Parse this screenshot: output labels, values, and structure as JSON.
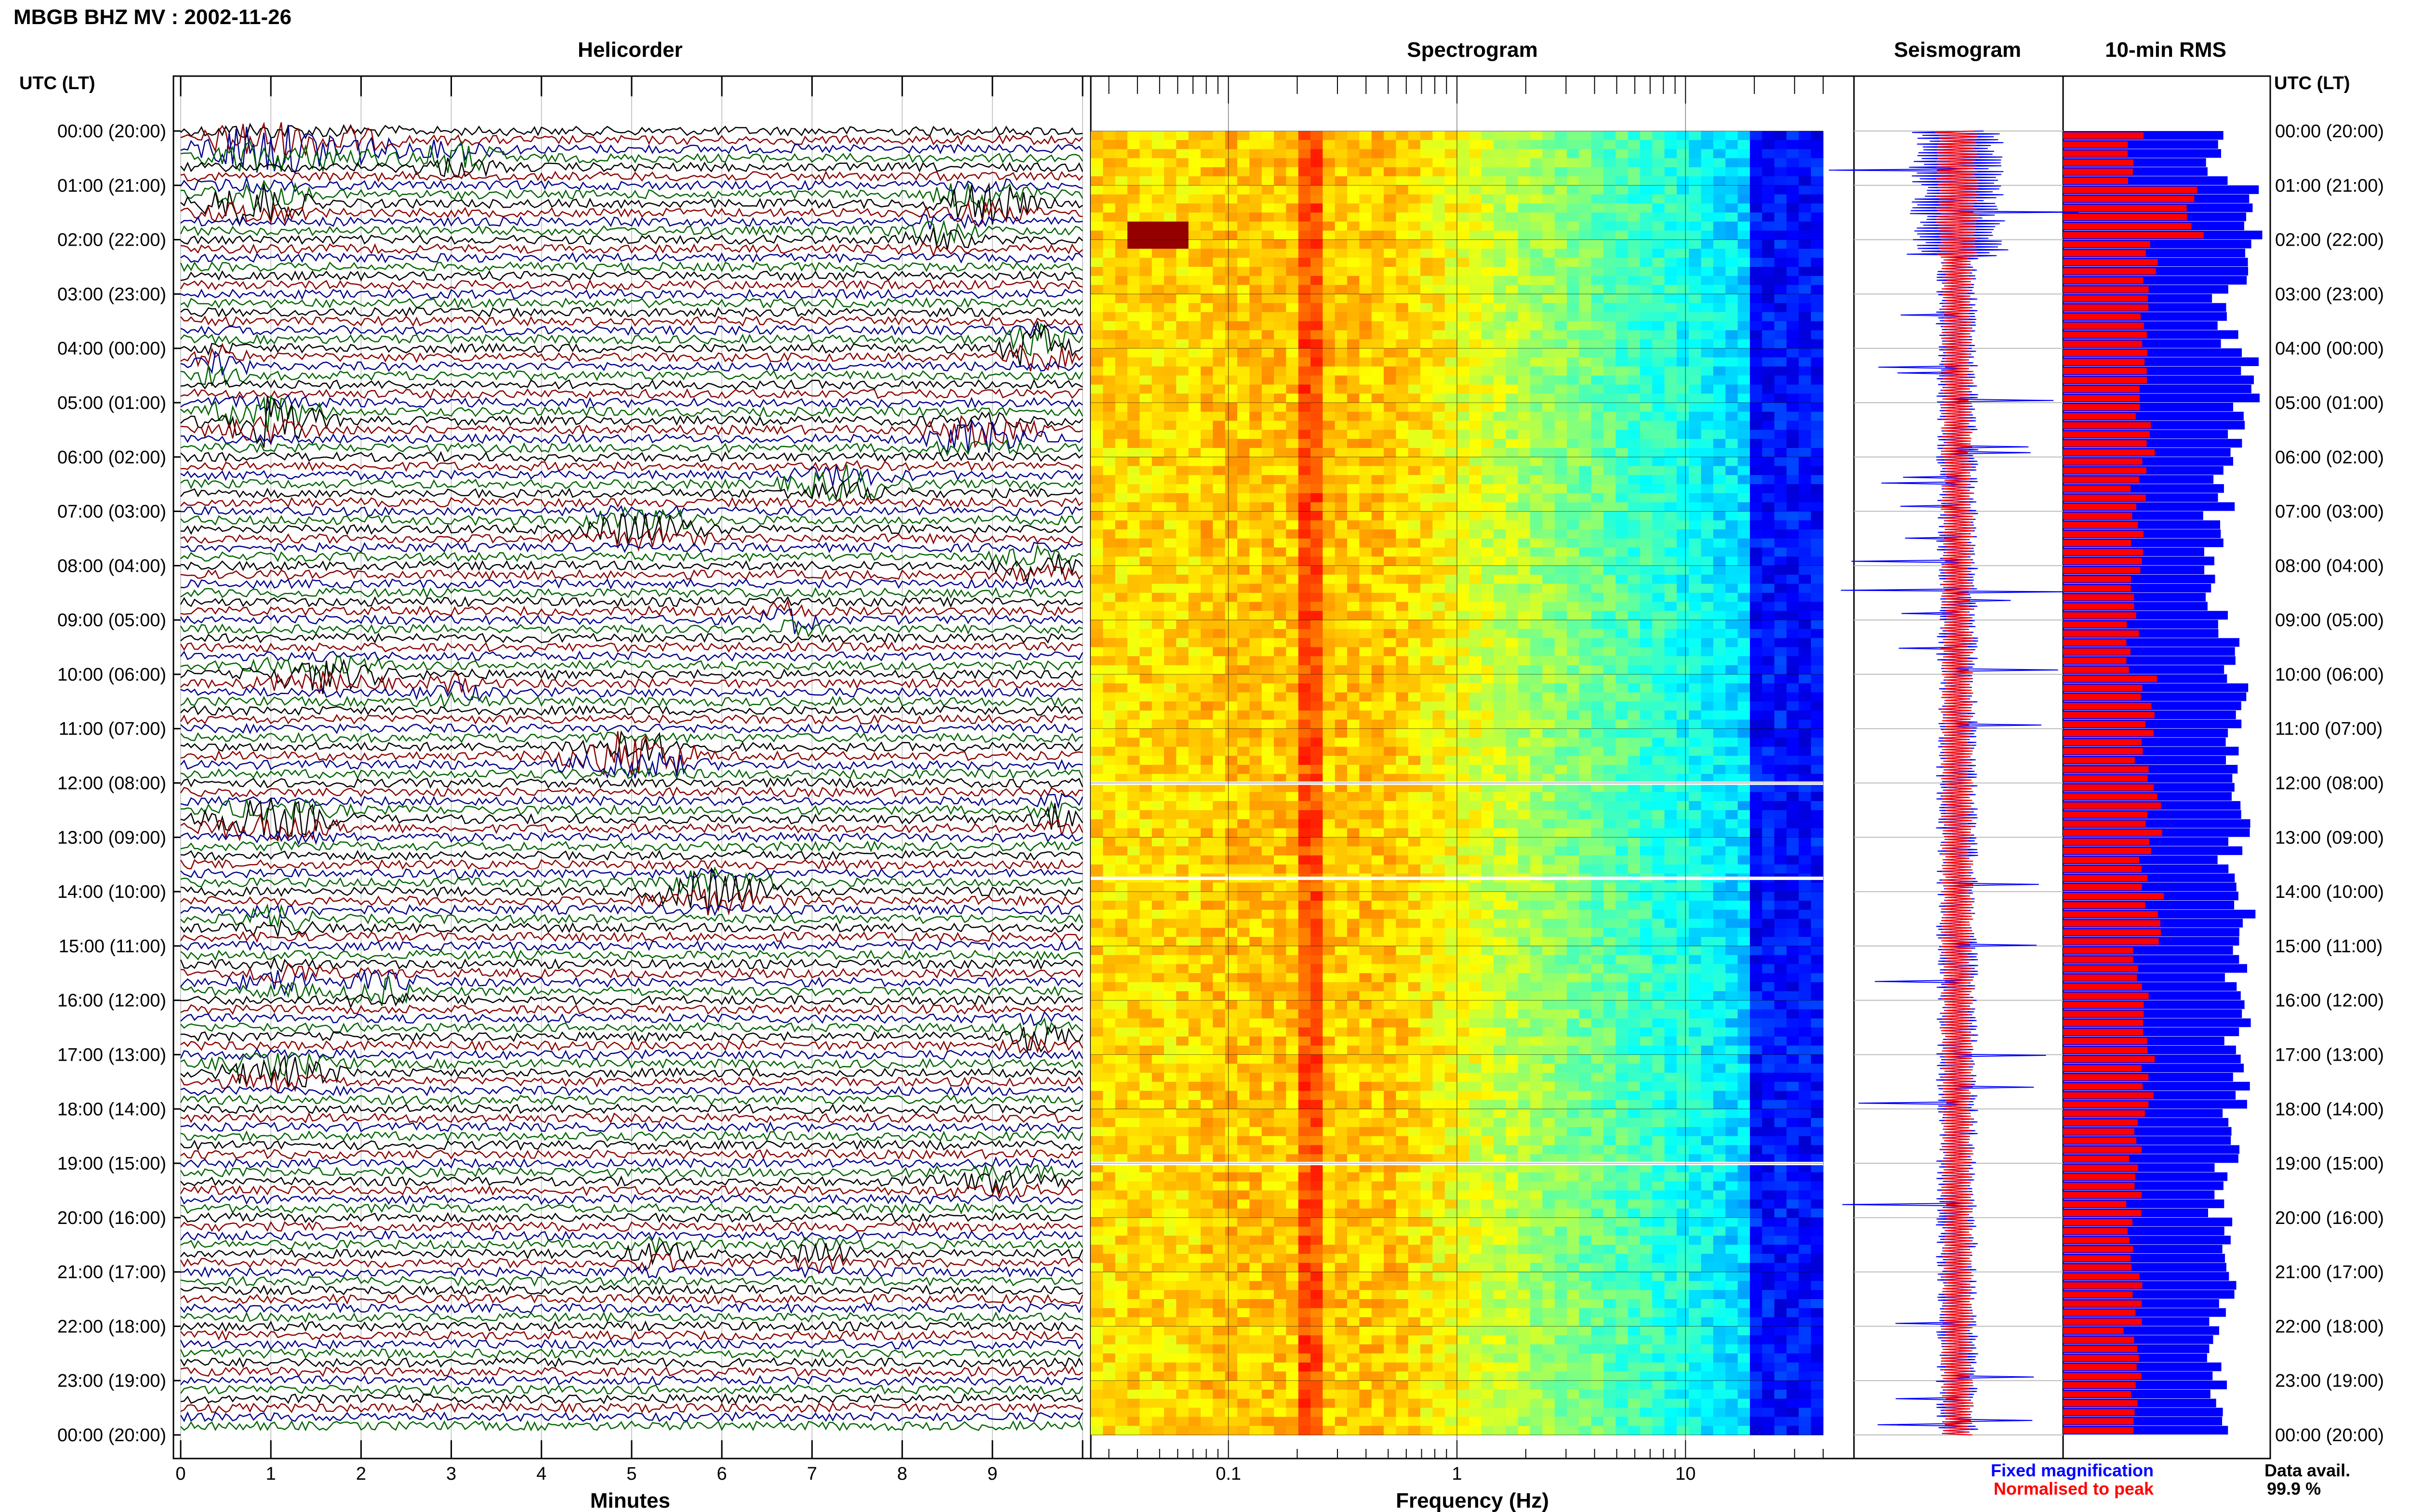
{
  "header": {
    "title": "MBGB BHZ MV : 2002-11-26",
    "helicorder_title": "Helicorder",
    "spectrogram_title": "Spectrogram",
    "seismogram_title": "Seismogram",
    "rms_title": "10-min RMS",
    "utc_lt_left": "UTC (LT)",
    "utc_lt_right": "UTC (LT)"
  },
  "footer": {
    "minutes_label": "Minutes",
    "frequency_label": "Frequency (Hz)",
    "fixed_magnification": "Fixed magnification",
    "normalised_to_peak": "Normalised to peak",
    "data_avail_label": "Data avail.",
    "data_avail_value": "99.9 %"
  },
  "colors": {
    "trace_black": "#000000",
    "trace_red": "#8b0000",
    "trace_blue": "#00008b",
    "trace_green": "#006400",
    "fixed_blue": "#0000ff",
    "normalised_red": "#ff0000"
  },
  "time_labels": [
    "00:00 (20:00)",
    "01:00 (21:00)",
    "02:00 (22:00)",
    "03:00 (23:00)",
    "04:00 (00:00)",
    "05:00 (01:00)",
    "06:00 (02:00)",
    "07:00 (03:00)",
    "08:00 (04:00)",
    "09:00 (05:00)",
    "10:00 (06:00)",
    "11:00 (07:00)",
    "12:00 (08:00)",
    "13:00 (09:00)",
    "14:00 (10:00)",
    "15:00 (11:00)",
    "16:00 (12:00)",
    "17:00 (13:00)",
    "18:00 (14:00)",
    "19:00 (15:00)",
    "20:00 (16:00)",
    "21:00 (17:00)",
    "22:00 (18:00)",
    "23:00 (19:00)",
    "00:00 (20:00)"
  ],
  "chart_data": [
    {
      "type": "line",
      "title": "Helicorder",
      "xlabel": "Minutes",
      "x_ticks": [
        "0",
        "1",
        "2",
        "3",
        "4",
        "5",
        "6",
        "7",
        "8",
        "9"
      ],
      "xlim": [
        0,
        10
      ],
      "ylabel": "UTC (LT)",
      "rows": 144,
      "row_minutes": 10,
      "trace_colors_cycle": [
        "black",
        "red",
        "blue",
        "green"
      ],
      "events": [
        {
          "hour": 0.3,
          "start_min": 0.0,
          "end_min": 1.5,
          "amp": 1.6,
          "color": "blue"
        },
        {
          "hour": 0.3,
          "start_min": 0.7,
          "end_min": 2.6,
          "amp": 1.2,
          "color": "green"
        },
        {
          "hour": 0.5,
          "start_min": 2.3,
          "end_min": 3.8,
          "amp": 0.8,
          "color": "red"
        },
        {
          "hour": 1.3,
          "start_min": 0.0,
          "end_min": 1.6,
          "amp": 1.3,
          "color": "red"
        },
        {
          "hour": 1.3,
          "start_min": 8.2,
          "end_min": 9.6,
          "amp": 1.3,
          "color": "red"
        },
        {
          "hour": 1.9,
          "start_min": 7.8,
          "end_min": 9.0,
          "amp": 0.7,
          "color": "red"
        },
        {
          "hour": 4.0,
          "start_min": 9.0,
          "end_min": 10.0,
          "amp": 1.5,
          "color": "blue"
        },
        {
          "hour": 4.3,
          "start_min": 0.0,
          "end_min": 0.8,
          "amp": 1.0,
          "color": "green"
        },
        {
          "hour": 5.3,
          "start_min": 0.1,
          "end_min": 1.8,
          "amp": 1.5,
          "color": "black"
        },
        {
          "hour": 5.6,
          "start_min": 8.0,
          "end_min": 9.7,
          "amp": 1.1,
          "color": "blue"
        },
        {
          "hour": 6.5,
          "start_min": 6.5,
          "end_min": 8.2,
          "amp": 0.9,
          "color": "black"
        },
        {
          "hour": 7.3,
          "start_min": 4.2,
          "end_min": 6.0,
          "amp": 1.0,
          "color": "black"
        },
        {
          "hour": 8.0,
          "start_min": 8.9,
          "end_min": 10.0,
          "amp": 0.8,
          "color": "green"
        },
        {
          "hour": 9.0,
          "start_min": 6.3,
          "end_min": 7.2,
          "amp": 0.7,
          "color": "black"
        },
        {
          "hour": 10.0,
          "start_min": 0.6,
          "end_min": 2.5,
          "amp": 0.9,
          "color": "black"
        },
        {
          "hour": 10.3,
          "start_min": 2.5,
          "end_min": 3.5,
          "amp": 0.6,
          "color": "blue"
        },
        {
          "hour": 11.5,
          "start_min": 4.0,
          "end_min": 6.0,
          "amp": 1.4,
          "color": "blue"
        },
        {
          "hour": 12.7,
          "start_min": 0.0,
          "end_min": 2.0,
          "amp": 1.2,
          "color": "red"
        },
        {
          "hour": 12.6,
          "start_min": 9.4,
          "end_min": 10.0,
          "amp": 0.9,
          "color": "black"
        },
        {
          "hour": 14.0,
          "start_min": 5.0,
          "end_min": 6.8,
          "amp": 1.2,
          "color": "red"
        },
        {
          "hour": 14.5,
          "start_min": 0.5,
          "end_min": 1.6,
          "amp": 0.7,
          "color": "green"
        },
        {
          "hour": 15.6,
          "start_min": 0.5,
          "end_min": 1.8,
          "amp": 0.8,
          "color": "blue"
        },
        {
          "hour": 15.8,
          "start_min": 1.6,
          "end_min": 2.8,
          "amp": 0.8,
          "color": "black"
        },
        {
          "hour": 16.6,
          "start_min": 9.0,
          "end_min": 10.0,
          "amp": 0.8,
          "color": "black"
        },
        {
          "hour": 17.3,
          "start_min": 0.2,
          "end_min": 2.0,
          "amp": 0.9,
          "color": "green"
        },
        {
          "hour": 19.3,
          "start_min": 8.0,
          "end_min": 10.0,
          "amp": 0.5,
          "color": "black"
        },
        {
          "hour": 20.7,
          "start_min": 4.8,
          "end_min": 5.8,
          "amp": 0.6,
          "color": "black"
        },
        {
          "hour": 20.7,
          "start_min": 6.6,
          "end_min": 7.6,
          "amp": 0.6,
          "color": "black"
        }
      ]
    },
    {
      "type": "heatmap",
      "title": "Spectrogram",
      "xlabel": "Frequency (Hz)",
      "x_scale": "log",
      "x_ticks": [
        "0.1",
        "1",
        "10"
      ],
      "xlim": [
        0.025,
        40
      ],
      "band_peak_hz": 0.22,
      "colormap": "jet",
      "gap_hours": [
        12.0,
        13.75,
        19.0
      ],
      "hot_spot": {
        "hour": 1.8,
        "freq_hz": 0.05
      }
    },
    {
      "type": "line",
      "title": "Seismogram",
      "series": [
        {
          "name": "Fixed magnification",
          "color": "#0000ff"
        },
        {
          "name": "Normalised to peak",
          "color": "#ff0000"
        }
      ]
    },
    {
      "type": "bar",
      "title": "10-min RMS",
      "series": [
        {
          "name": "Fixed magnification",
          "color": "#0000ff"
        },
        {
          "name": "Normalised to peak",
          "color": "#ff0000"
        }
      ],
      "hourly_fixed_rel": [
        0.75,
        0.95,
        0.88,
        0.8,
        0.92,
        0.85,
        0.78,
        0.72,
        0.75,
        0.8,
        0.85,
        0.82,
        0.88,
        0.82,
        0.88,
        0.85,
        0.86,
        0.88,
        0.82,
        0.78,
        0.8,
        0.78,
        0.76,
        0.74
      ],
      "hourly_norm_rel": [
        0.35,
        0.65,
        0.42,
        0.38,
        0.42,
        0.4,
        0.38,
        0.36,
        0.34,
        0.34,
        0.42,
        0.4,
        0.45,
        0.4,
        0.45,
        0.38,
        0.4,
        0.42,
        0.37,
        0.34,
        0.34,
        0.34,
        0.34,
        0.34
      ]
    }
  ]
}
